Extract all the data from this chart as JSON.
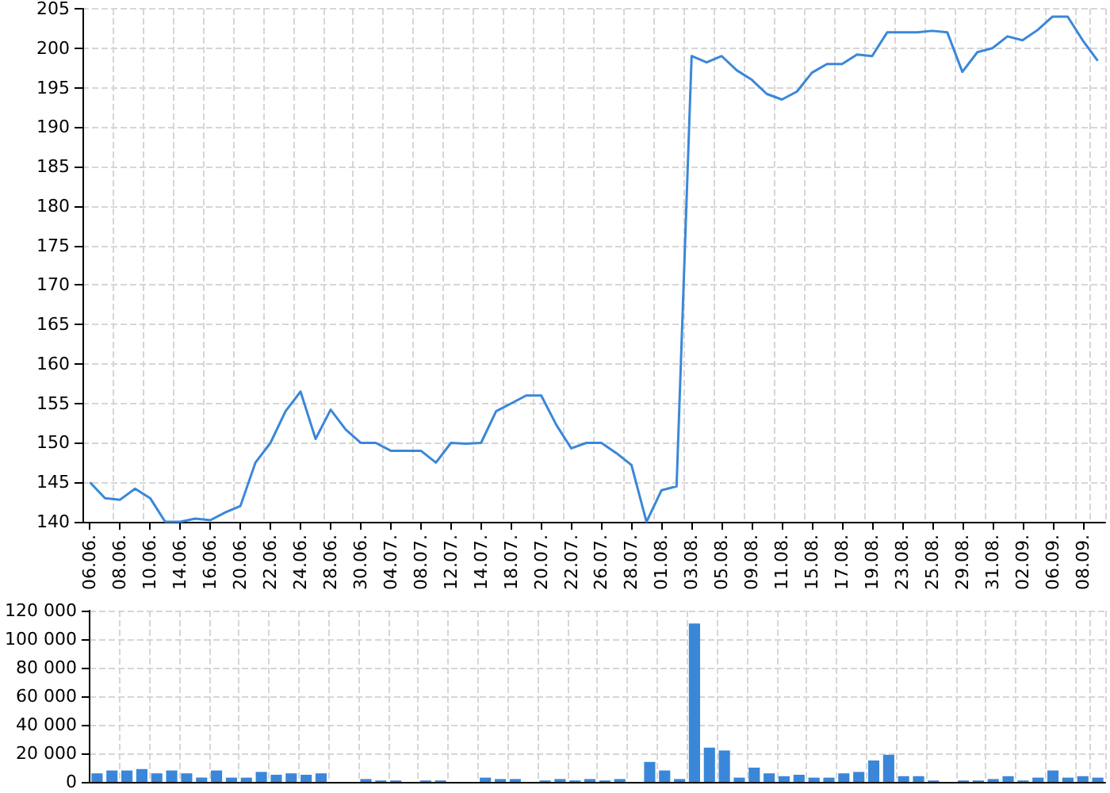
{
  "chart_data": [
    {
      "type": "line",
      "categories": [
        "06.06.",
        null,
        "08.06.",
        null,
        "10.06.",
        null,
        "14.06.",
        null,
        "16.06.",
        null,
        "20.06.",
        null,
        "22.06.",
        null,
        "24.06.",
        null,
        "28.06.",
        null,
        "30.06.",
        null,
        "04.07.",
        null,
        "08.07.",
        null,
        "12.07.",
        null,
        "14.07.",
        null,
        "18.07.",
        null,
        "20.07.",
        null,
        "22.07.",
        null,
        "26.07.",
        null,
        "28.07.",
        null,
        "01.08.",
        null,
        "03.08.",
        null,
        "05.08.",
        null,
        "09.08.",
        null,
        "11.08.",
        null,
        "15.08.",
        null,
        "17.08.",
        null,
        "19.08.",
        null,
        "23.08.",
        null,
        "25.08.",
        null,
        "29.08.",
        null,
        "31.08.",
        null,
        "02.09.",
        null,
        "06.09.",
        null,
        "08.09.",
        null
      ],
      "series": [
        {
          "color": "#3a87d9",
          "values": [
            145,
            143,
            142.8,
            144.2,
            143,
            140,
            140,
            140.4,
            140.2,
            141.2,
            142,
            147.5,
            150,
            154,
            156.5,
            150.5,
            154.2,
            151.7,
            150,
            150,
            149,
            149,
            149,
            147.5,
            150,
            149.9,
            150,
            154,
            155,
            156,
            156,
            152.3,
            149.3,
            150,
            150,
            148.7,
            147.2,
            140,
            144,
            144.5,
            199,
            198.2,
            199,
            197.2,
            196,
            194.2,
            193.5,
            194.5,
            196.9,
            198,
            198,
            199.2,
            199,
            202,
            202,
            202,
            202.2,
            202,
            197,
            199.5,
            200,
            201.5,
            201,
            202.3,
            204,
            204,
            201,
            198.4
          ]
        }
      ],
      "ylim": [
        140,
        205
      ],
      "yticks": [
        140,
        145,
        150,
        155,
        160,
        165,
        170,
        175,
        180,
        185,
        190,
        195,
        200,
        205
      ],
      "grid": true,
      "marker": "none",
      "line_style": "solid"
    },
    {
      "type": "bar",
      "categories": [
        null,
        null,
        null,
        null,
        null,
        null,
        null,
        null,
        null,
        null,
        null,
        null,
        null,
        null,
        null,
        null,
        null,
        null,
        null,
        null,
        null,
        null,
        null,
        null,
        null,
        null,
        null,
        null,
        null,
        null,
        null,
        null,
        null,
        null,
        null,
        null,
        null,
        null,
        null,
        null,
        null,
        null,
        null,
        null,
        null,
        null,
        null,
        null,
        null,
        null,
        null,
        null,
        null,
        null,
        null,
        null,
        null,
        null,
        null,
        null,
        null,
        null,
        null,
        null,
        null,
        null,
        null,
        null
      ],
      "series": [
        {
          "color": "#3a87d9",
          "values": [
            6000,
            8000,
            8000,
            9000,
            6000,
            8000,
            6000,
            3000,
            8000,
            3000,
            3000,
            7000,
            5000,
            6000,
            5000,
            6000,
            0,
            0,
            2000,
            1000,
            1000,
            0,
            1000,
            1000,
            0,
            0,
            3000,
            2000,
            2000,
            0,
            1000,
            2000,
            1000,
            2000,
            1000,
            2000,
            0,
            14000,
            8000,
            2000,
            111000,
            24000,
            22000,
            3000,
            10000,
            6000,
            4000,
            5000,
            3000,
            3000,
            6000,
            7000,
            15000,
            19000,
            4000,
            4000,
            1000,
            0,
            1000,
            1000,
            2000,
            4000,
            1000,
            3000,
            8000,
            3000,
            4000,
            3000
          ]
        }
      ],
      "ylim": [
        0,
        120000
      ],
      "yticks": [
        0,
        {
          "value": 20000,
          "label": "20 000"
        },
        {
          "value": 40000,
          "label": "40 000"
        },
        {
          "value": 60000,
          "label": "60 000"
        },
        {
          "value": 80000,
          "label": "80 000"
        },
        {
          "value": 100000,
          "label": "100 000"
        },
        {
          "value": 120000,
          "label": "120 000"
        }
      ],
      "grid": true,
      "tick_labels": "y"
    }
  ]
}
